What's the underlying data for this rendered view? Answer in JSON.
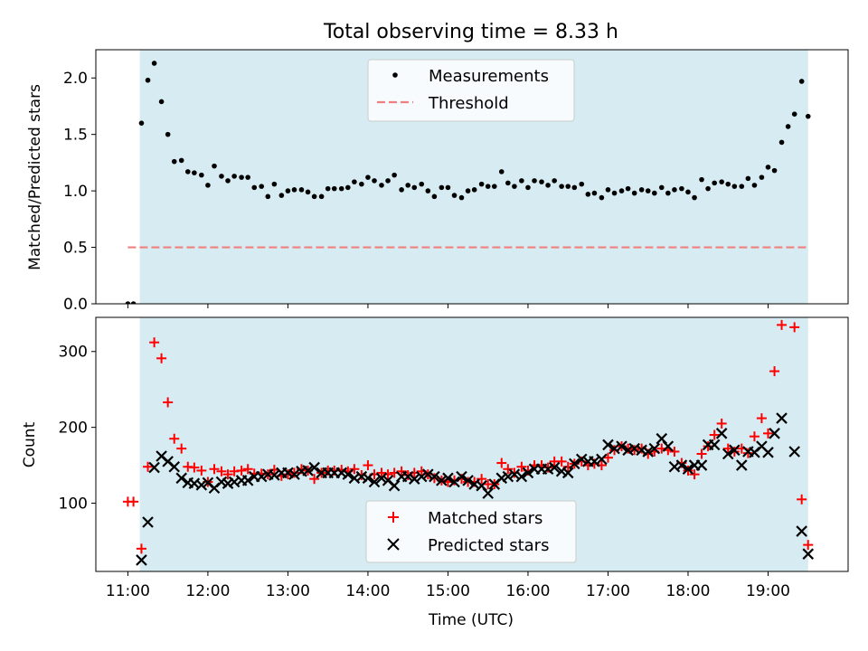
{
  "title": "Total observing time = 8.33 h",
  "colors": {
    "shade": "#add8e6",
    "threshold": "#f08080",
    "measure": "#000000",
    "matched": "#ff0000",
    "predicted": "#000000"
  },
  "chart_data": [
    {
      "type": "scatter",
      "ylabel": "Matched/Predicted stars",
      "xlim": [
        10.6,
        20.0
      ],
      "ylim": [
        0,
        2.25
      ],
      "yticks": [
        "0.0",
        "0.5",
        "1.0",
        "1.5",
        "2.0"
      ],
      "ytick_values": [
        0,
        0.5,
        1.0,
        1.5,
        2.0
      ],
      "shaded_span": [
        11.15,
        19.5
      ],
      "threshold": {
        "y": 0.5,
        "x_range": [
          11.0,
          19.5
        ]
      },
      "legend": {
        "placement": "upper center",
        "entries": [
          "Measurements",
          "Threshold"
        ]
      },
      "series": [
        {
          "name": "Measurements",
          "marker": "dot",
          "x": [
            11.0,
            11.07,
            11.17,
            11.25,
            11.33,
            11.42,
            11.5,
            11.58,
            11.67,
            11.75,
            11.83,
            11.92,
            12.0,
            12.08,
            12.17,
            12.25,
            12.33,
            12.42,
            12.5,
            12.58,
            12.67,
            12.75,
            12.83,
            12.92,
            13.0,
            13.08,
            13.17,
            13.25,
            13.33,
            13.42,
            13.5,
            13.58,
            13.67,
            13.75,
            13.83,
            13.92,
            14.0,
            14.08,
            14.17,
            14.25,
            14.33,
            14.42,
            14.5,
            14.58,
            14.67,
            14.75,
            14.83,
            14.92,
            15.0,
            15.08,
            15.17,
            15.25,
            15.33,
            15.42,
            15.5,
            15.58,
            15.67,
            15.75,
            15.83,
            15.92,
            16.0,
            16.08,
            16.17,
            16.25,
            16.33,
            16.42,
            16.5,
            16.58,
            16.67,
            16.75,
            16.83,
            16.92,
            17.0,
            17.08,
            17.17,
            17.25,
            17.33,
            17.42,
            17.5,
            17.58,
            17.67,
            17.75,
            17.83,
            17.92,
            18.0,
            18.08,
            18.17,
            18.25,
            18.33,
            18.42,
            18.5,
            18.58,
            18.67,
            18.75,
            18.83,
            18.92,
            19.0,
            19.08,
            19.17,
            19.25,
            19.33,
            19.42,
            19.5
          ],
          "y": [
            0.0,
            0.0,
            1.6,
            1.98,
            2.13,
            1.79,
            1.5,
            1.26,
            1.27,
            1.17,
            1.16,
            1.14,
            1.05,
            1.22,
            1.13,
            1.09,
            1.13,
            1.12,
            1.12,
            1.03,
            1.04,
            0.95,
            1.06,
            0.96,
            1.0,
            1.01,
            1.01,
            0.99,
            0.95,
            0.95,
            1.02,
            1.02,
            1.02,
            1.03,
            1.08,
            1.06,
            1.12,
            1.09,
            1.05,
            1.09,
            1.14,
            1.01,
            1.05,
            1.03,
            1.06,
            1.0,
            0.95,
            1.03,
            1.03,
            0.96,
            0.94,
            1.0,
            1.01,
            1.06,
            1.04,
            1.04,
            1.17,
            1.07,
            1.04,
            1.09,
            1.03,
            1.09,
            1.08,
            1.05,
            1.09,
            1.04,
            1.04,
            1.03,
            1.06,
            0.97,
            0.98,
            0.94,
            1.01,
            0.98,
            1.0,
            1.02,
            0.98,
            1.01,
            1.0,
            0.98,
            1.03,
            0.98,
            1.01,
            1.02,
            0.99,
            0.94,
            1.1,
            1.02,
            1.07,
            1.08,
            1.06,
            1.04,
            1.04,
            1.11,
            1.05,
            1.12,
            1.21,
            1.18,
            1.43,
            1.57,
            1.68,
            1.97,
            1.66
          ]
        }
      ]
    },
    {
      "type": "scatter",
      "xlabel": "Time (UTC)",
      "ylabel": "Count",
      "xlim": [
        10.6,
        20.0
      ],
      "ylim": [
        10,
        345
      ],
      "xticks": [
        "11:00",
        "12:00",
        "13:00",
        "14:00",
        "15:00",
        "16:00",
        "17:00",
        "18:00",
        "19:00"
      ],
      "xtick_values": [
        11,
        12,
        13,
        14,
        15,
        16,
        17,
        18,
        19
      ],
      "yticks": [
        "100",
        "200",
        "300"
      ],
      "ytick_values": [
        100,
        200,
        300
      ],
      "shaded_span": [
        11.15,
        19.5
      ],
      "legend": {
        "placement": "lower center",
        "entries": [
          "Matched stars",
          "Predicted stars"
        ]
      },
      "series": [
        {
          "name": "Matched stars",
          "marker": "plus",
          "x": [
            11.0,
            11.07,
            11.17,
            11.25,
            11.33,
            11.42,
            11.5,
            11.58,
            11.67,
            11.75,
            11.83,
            11.92,
            12.0,
            12.08,
            12.17,
            12.25,
            12.33,
            12.42,
            12.5,
            12.58,
            12.67,
            12.75,
            12.83,
            12.92,
            13.0,
            13.08,
            13.17,
            13.25,
            13.33,
            13.42,
            13.5,
            13.58,
            13.67,
            13.75,
            13.83,
            13.92,
            14.0,
            14.08,
            14.17,
            14.25,
            14.33,
            14.42,
            14.5,
            14.58,
            14.67,
            14.75,
            14.83,
            14.92,
            15.0,
            15.08,
            15.17,
            15.25,
            15.33,
            15.42,
            15.5,
            15.58,
            15.67,
            15.75,
            15.83,
            15.92,
            16.0,
            16.08,
            16.17,
            16.25,
            16.33,
            16.42,
            16.5,
            16.58,
            16.67,
            16.75,
            16.83,
            16.92,
            17.0,
            17.08,
            17.17,
            17.25,
            17.33,
            17.42,
            17.5,
            17.58,
            17.67,
            17.75,
            17.83,
            17.92,
            18.0,
            18.08,
            18.17,
            18.25,
            18.33,
            18.42,
            18.5,
            18.58,
            18.67,
            18.75,
            18.83,
            18.92,
            19.0,
            19.08,
            19.17,
            19.33,
            19.42,
            19.5
          ],
          "y": [
            102,
            102,
            40,
            148,
            312,
            291,
            233,
            185,
            172,
            148,
            147,
            143,
            128,
            145,
            142,
            138,
            142,
            143,
            145,
            139,
            139,
            138,
            144,
            136,
            138,
            140,
            145,
            143,
            132,
            140,
            143,
            143,
            144,
            142,
            145,
            137,
            150,
            138,
            140,
            138,
            140,
            142,
            137,
            140,
            142,
            138,
            133,
            130,
            128,
            130,
            132,
            128,
            128,
            132,
            125,
            125,
            153,
            145,
            140,
            148,
            143,
            150,
            150,
            147,
            155,
            155,
            148,
            152,
            155,
            150,
            152,
            150,
            160,
            170,
            175,
            172,
            170,
            172,
            165,
            168,
            172,
            170,
            168,
            153,
            143,
            138,
            165,
            175,
            190,
            205,
            172,
            168,
            172,
            166,
            188,
            212,
            192,
            274,
            335,
            332,
            105,
            45
          ]
        },
        {
          "name": "Predicted stars",
          "marker": "x",
          "x": [
            11.17,
            11.25,
            11.33,
            11.42,
            11.5,
            11.58,
            11.67,
            11.75,
            11.83,
            11.92,
            12.0,
            12.08,
            12.17,
            12.25,
            12.33,
            12.42,
            12.5,
            12.58,
            12.67,
            12.75,
            12.83,
            12.92,
            13.0,
            13.08,
            13.17,
            13.25,
            13.33,
            13.42,
            13.5,
            13.58,
            13.67,
            13.75,
            13.83,
            13.92,
            14.0,
            14.08,
            14.17,
            14.25,
            14.33,
            14.42,
            14.5,
            14.58,
            14.67,
            14.75,
            14.83,
            14.92,
            15.0,
            15.08,
            15.17,
            15.25,
            15.33,
            15.42,
            15.5,
            15.58,
            15.67,
            15.75,
            15.83,
            15.92,
            16.0,
            16.08,
            16.17,
            16.25,
            16.33,
            16.42,
            16.5,
            16.58,
            16.67,
            16.75,
            16.83,
            16.92,
            17.0,
            17.08,
            17.17,
            17.25,
            17.33,
            17.42,
            17.5,
            17.58,
            17.67,
            17.75,
            17.83,
            17.92,
            18.0,
            18.08,
            18.17,
            18.25,
            18.33,
            18.42,
            18.5,
            18.58,
            18.67,
            18.75,
            18.83,
            18.92,
            19.0,
            19.08,
            19.17,
            19.33,
            19.42,
            19.5
          ],
          "y": [
            25,
            75,
            147,
            162,
            155,
            148,
            133,
            127,
            126,
            124,
            127,
            120,
            128,
            126,
            128,
            130,
            130,
            135,
            135,
            138,
            137,
            140,
            140,
            138,
            142,
            143,
            147,
            140,
            140,
            140,
            140,
            138,
            133,
            135,
            133,
            128,
            133,
            130,
            123,
            135,
            135,
            132,
            135,
            138,
            135,
            130,
            133,
            128,
            135,
            130,
            125,
            123,
            113,
            125,
            133,
            135,
            138,
            135,
            140,
            145,
            145,
            145,
            147,
            142,
            140,
            152,
            158,
            155,
            155,
            158,
            177,
            172,
            175,
            170,
            172,
            170,
            168,
            172,
            185,
            175,
            148,
            150,
            145,
            150,
            150,
            177,
            177,
            192,
            165,
            170,
            150,
            168,
            167,
            175,
            167,
            192,
            212,
            168,
            63,
            33
          ]
        }
      ]
    }
  ]
}
